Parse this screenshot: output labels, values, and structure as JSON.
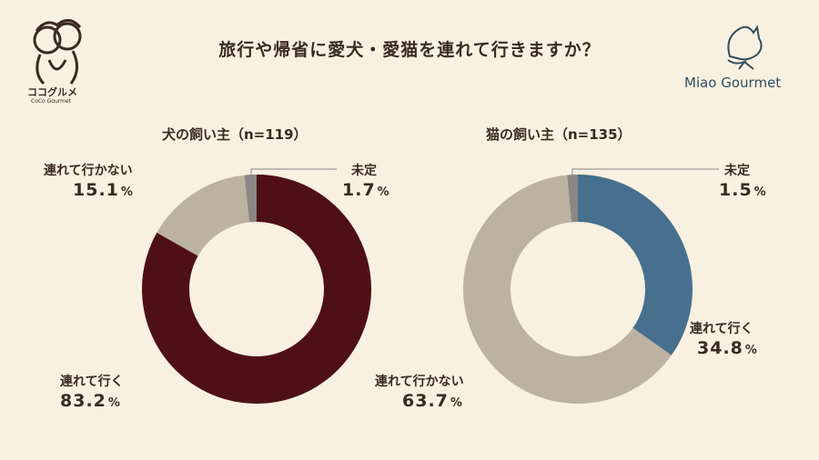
{
  "header": {
    "title": "旅行や帰省に愛犬・愛猫を連れて行きますか？",
    "logo_left_name": "ココグルメ",
    "logo_left_sub": "CoCo Gourmet",
    "logo_right_name": "Miao Gourmet"
  },
  "colors": {
    "background": "#f8f0e0",
    "dog_take": "#4e1016",
    "cat_take": "#46708d",
    "not_take": "#bdb1a2",
    "undecided": "#8a8784"
  },
  "chart_data": [
    {
      "type": "pie",
      "title": "犬の飼い主（n=119）",
      "labels": [
        "連れて行く",
        "連れて行かない",
        "未定"
      ],
      "values": [
        83.2,
        15.1,
        1.7
      ],
      "display": {
        "take_label": "連れて行く",
        "take_pct": "83.2",
        "take_unit": "%",
        "not_label": "連れて行かない",
        "not_pct": "15.1",
        "not_unit": "%",
        "und_label": "未定",
        "und_pct": "1.7",
        "und_unit": "%"
      }
    },
    {
      "type": "pie",
      "title": "猫の飼い主（n=135）",
      "labels": [
        "連れて行く",
        "連れて行かない",
        "未定"
      ],
      "values": [
        34.8,
        63.7,
        1.5
      ],
      "display": {
        "take_label": "連れて行く",
        "take_pct": "34.8",
        "take_unit": "%",
        "not_label": "連れて行かない",
        "not_pct": "63.7",
        "not_unit": "%",
        "und_label": "未定",
        "und_pct": "1.5",
        "und_unit": "%"
      }
    }
  ]
}
